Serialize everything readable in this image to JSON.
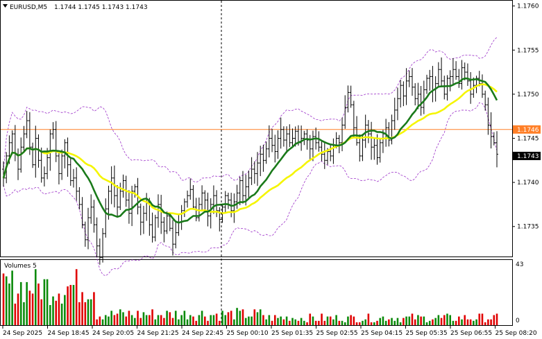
{
  "header": {
    "symbol": "EURUSD,M5",
    "ohlc": "1.1744 1.1745 1.1743 1.1743"
  },
  "volume_panel": {
    "title": "Volumes 5",
    "max_label": "43",
    "zero_label": "0"
  },
  "colors": {
    "bull": "#000000",
    "bear": "#000000",
    "sma_fast": "#1a7a1a",
    "sma_slow": "#f5f500",
    "bollinger": "#9b30c8",
    "hline": "#ff7f27",
    "vol_up": "#0a8a0a",
    "vol_down": "#e00000"
  },
  "price_labels": {
    "hline_value": "1.1746",
    "current_value": "1.1743"
  },
  "chart_data": {
    "type": "candlestick",
    "y_axis": {
      "ticks": [
        "1.1760",
        "1.1755",
        "1.1750",
        "1.1745",
        "1.1740",
        "1.1735"
      ],
      "ylim": [
        1.17316,
        1.17606
      ]
    },
    "x_axis": {
      "ticks": [
        "24 Sep 2025",
        "24 Sep 18:45",
        "24 Sep 20:05",
        "24 Sep 21:25",
        "24 Sep 22:45",
        "25 Sep 00:10",
        "25 Sep 01:35",
        "25 Sep 02:55",
        "25 Sep 04:15",
        "25 Sep 05:35",
        "25 Sep 06:55",
        "25 Sep 08:20"
      ]
    },
    "hline": 1.1746,
    "current_price": 1.1743,
    "close": [
      1.17405,
      1.1743,
      1.17445,
      1.17455,
      1.17432,
      1.17415,
      1.1744,
      1.17455,
      1.1747,
      1.1744,
      1.1742,
      1.1745,
      1.17425,
      1.17405,
      1.1741,
      1.17428,
      1.17455,
      1.1746,
      1.1743,
      1.1741,
      1.1743,
      1.17445,
      1.1742,
      1.17402,
      1.17405,
      1.1739,
      1.17375,
      1.17352,
      1.17335,
      1.1736,
      1.17372,
      1.17352,
      1.17328,
      1.17315,
      1.17342,
      1.1737,
      1.1739,
      1.17405,
      1.17385,
      1.17372,
      1.1739,
      1.17402,
      1.1738,
      1.17365,
      1.1739,
      1.17395,
      1.17372,
      1.17355,
      1.17365,
      1.17378,
      1.17352,
      1.17338,
      1.1736,
      1.17375,
      1.17355,
      1.17345,
      1.17362,
      1.17348,
      1.1733,
      1.17343,
      1.17355,
      1.17368,
      1.17378,
      1.17385,
      1.17392,
      1.17372,
      1.1736,
      1.17375,
      1.17388,
      1.1738,
      1.17362,
      1.17375,
      1.17385,
      1.17368,
      1.17358,
      1.17372,
      1.17385,
      1.1738,
      1.17368,
      1.17378,
      1.17388,
      1.17402,
      1.17385,
      1.17395,
      1.17405,
      1.17415,
      1.1741,
      1.17422,
      1.17432,
      1.17425,
      1.17438,
      1.1745,
      1.17442,
      1.17435,
      1.1745,
      1.1746,
      1.17448,
      1.17455,
      1.17445,
      1.1745,
      1.17458,
      1.17445,
      1.1745,
      1.17455,
      1.17448,
      1.17438,
      1.17452,
      1.17445,
      1.1744,
      1.17432,
      1.17425,
      1.17435,
      1.1743,
      1.17442,
      1.1745,
      1.17445,
      1.17465,
      1.17485,
      1.17502,
      1.17488,
      1.17462,
      1.17445,
      1.1743,
      1.17448,
      1.17465,
      1.17455,
      1.1744,
      1.17442,
      1.17428,
      1.17445,
      1.17455,
      1.17462,
      1.17448,
      1.1747,
      1.17482,
      1.17495,
      1.1751,
      1.17498,
      1.17515,
      1.1752,
      1.17508,
      1.17495,
      1.175,
      1.17485,
      1.17505,
      1.17518,
      1.1752,
      1.17505,
      1.17512,
      1.17528,
      1.17515,
      1.175,
      1.17518,
      1.1752,
      1.17528,
      1.1752,
      1.17512,
      1.1753,
      1.17525,
      1.17515,
      1.175,
      1.1751,
      1.17518,
      1.17512,
      1.175,
      1.17488,
      1.17465,
      1.17452,
      1.17445,
      1.17432
    ]
  }
}
